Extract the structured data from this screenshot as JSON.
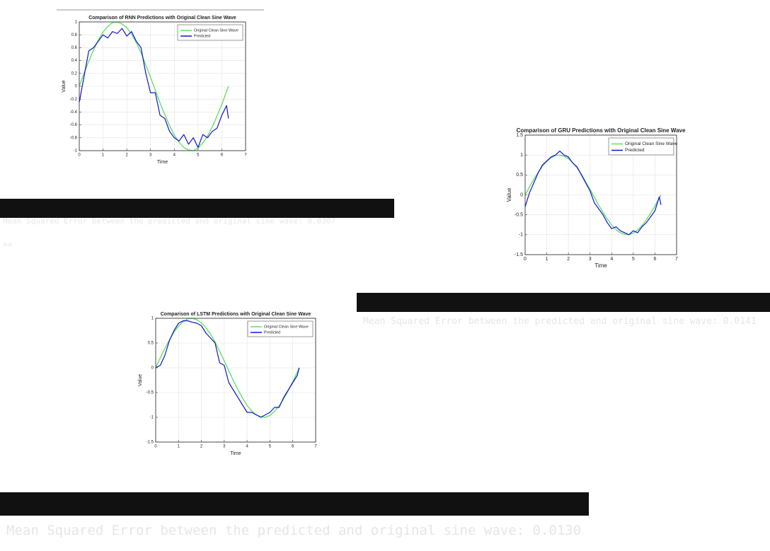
{
  "chart_data": [
    {
      "type": "line",
      "title": "Comparison of RNN Predictions with Original Clean Sine Wave",
      "xlabel": "Time",
      "ylabel": "Value",
      "x": [
        0,
        0.2,
        0.4,
        0.6,
        0.8,
        1,
        1.2,
        1.4,
        1.6,
        1.8,
        2,
        2.2,
        2.4,
        2.6,
        2.8,
        3,
        3.2,
        3.4,
        3.6,
        3.8,
        4,
        4.2,
        4.4,
        4.6,
        4.8,
        5,
        5.2,
        5.4,
        5.6,
        5.8,
        6,
        6.2,
        6.28
      ],
      "series": [
        {
          "name": "Original Clean Sine Wave",
          "color": "#66e066",
          "values": [
            0,
            0.2,
            0.39,
            0.56,
            0.72,
            0.84,
            0.93,
            0.99,
            1,
            0.97,
            0.91,
            0.81,
            0.68,
            0.52,
            0.33,
            0.14,
            -0.06,
            -0.26,
            -0.44,
            -0.61,
            -0.76,
            -0.87,
            -0.95,
            -0.99,
            -1,
            -0.96,
            -0.88,
            -0.77,
            -0.63,
            -0.46,
            -0.28,
            -0.08,
            0
          ]
        },
        {
          "name": "Predicted",
          "color": "#1414d0",
          "values": [
            -0.25,
            0.15,
            0.55,
            0.6,
            0.7,
            0.8,
            0.75,
            0.85,
            0.82,
            0.9,
            0.78,
            0.85,
            0.7,
            0.6,
            0.2,
            -0.1,
            -0.1,
            -0.45,
            -0.5,
            -0.7,
            -0.8,
            -0.85,
            -0.75,
            -0.9,
            -0.8,
            -0.95,
            -0.75,
            -0.8,
            -0.7,
            -0.65,
            -0.45,
            -0.3,
            -0.5
          ]
        }
      ],
      "xlim": [
        0,
        7
      ],
      "xticks": [
        0,
        1,
        2,
        3,
        4,
        5,
        6,
        7
      ],
      "ylim": [
        -1,
        1
      ],
      "yticks": [
        -1,
        -0.8,
        -0.6,
        -0.4,
        -0.2,
        0,
        0.2,
        0.4,
        0.6,
        0.8,
        1
      ],
      "grid": true,
      "legend": "upper right"
    },
    {
      "type": "line",
      "title": "Comparison of GRU Predictions with Original Clean Sine Wave",
      "xlabel": "Time",
      "ylabel": "Value",
      "x": [
        0,
        0.2,
        0.4,
        0.6,
        0.8,
        1,
        1.2,
        1.4,
        1.6,
        1.8,
        2,
        2.2,
        2.4,
        2.6,
        2.8,
        3,
        3.2,
        3.4,
        3.6,
        3.8,
        4,
        4.2,
        4.4,
        4.6,
        4.8,
        5,
        5.2,
        5.4,
        5.6,
        5.8,
        6,
        6.2,
        6.28
      ],
      "series": [
        {
          "name": "Original Clean Sine Wave",
          "color": "#66e066",
          "values": [
            0,
            0.2,
            0.39,
            0.56,
            0.72,
            0.84,
            0.93,
            0.99,
            1,
            0.97,
            0.91,
            0.81,
            0.68,
            0.52,
            0.33,
            0.14,
            -0.06,
            -0.26,
            -0.44,
            -0.61,
            -0.76,
            -0.87,
            -0.95,
            -0.99,
            -1,
            -0.96,
            -0.88,
            -0.77,
            -0.63,
            -0.46,
            -0.28,
            -0.08,
            0
          ]
        },
        {
          "name": "Predicted",
          "color": "#1414d0",
          "values": [
            -0.3,
            0.05,
            0.3,
            0.55,
            0.75,
            0.85,
            0.95,
            1,
            1.1,
            1,
            0.95,
            0.8,
            0.7,
            0.5,
            0.3,
            0.1,
            -0.2,
            -0.35,
            -0.5,
            -0.7,
            -0.85,
            -0.8,
            -0.9,
            -0.95,
            -1,
            -0.9,
            -0.95,
            -0.8,
            -0.7,
            -0.55,
            -0.4,
            -0.05,
            -0.25
          ]
        }
      ],
      "xlim": [
        0,
        7
      ],
      "xticks": [
        0,
        1,
        2,
        3,
        4,
        5,
        6,
        7
      ],
      "ylim": [
        -1.5,
        1.5
      ],
      "yticks": [
        -1.5,
        -1,
        -0.5,
        0,
        0.5,
        1,
        1.5
      ],
      "grid": true,
      "legend": "upper right"
    },
    {
      "type": "line",
      "title": "Comparison of LSTM Predictions with Original Clean Sine Wave",
      "xlabel": "Time",
      "ylabel": "Value",
      "x": [
        0,
        0.2,
        0.4,
        0.6,
        0.8,
        1,
        1.2,
        1.4,
        1.6,
        1.8,
        2,
        2.2,
        2.4,
        2.6,
        2.8,
        3,
        3.2,
        3.4,
        3.6,
        3.8,
        4,
        4.2,
        4.4,
        4.6,
        4.8,
        5,
        5.2,
        5.4,
        5.6,
        5.8,
        6,
        6.2,
        6.28
      ],
      "series": [
        {
          "name": "Original Clean Sine Wave",
          "color": "#66e066",
          "values": [
            0,
            0.2,
            0.39,
            0.56,
            0.72,
            0.84,
            0.93,
            0.99,
            1,
            0.97,
            0.91,
            0.81,
            0.68,
            0.52,
            0.33,
            0.14,
            -0.06,
            -0.26,
            -0.44,
            -0.61,
            -0.76,
            -0.87,
            -0.95,
            -0.99,
            -1,
            -0.96,
            -0.88,
            -0.77,
            -0.63,
            -0.46,
            -0.28,
            -0.08,
            0
          ]
        },
        {
          "name": "Predicted",
          "color": "#1414d0",
          "values": [
            0,
            0.05,
            0.25,
            0.55,
            0.75,
            0.9,
            0.95,
            0.95,
            0.92,
            0.9,
            0.85,
            0.7,
            0.6,
            0.5,
            0.1,
            0.05,
            -0.3,
            -0.45,
            -0.6,
            -0.75,
            -0.9,
            -0.9,
            -0.95,
            -1,
            -0.95,
            -0.9,
            -0.8,
            -0.8,
            -0.6,
            -0.45,
            -0.3,
            -0.15,
            0
          ]
        }
      ],
      "xlim": [
        0,
        7
      ],
      "xticks": [
        0,
        1,
        2,
        3,
        4,
        5,
        6,
        7
      ],
      "ylim": [
        -1.5,
        1
      ],
      "yticks": [
        -1.5,
        -1,
        -0.5,
        0,
        0.5,
        1
      ],
      "grid": true,
      "legend": "upper right"
    }
  ],
  "terminals": [
    {
      "lines": [
        "Mean Squared Error between the predicted and original sine wave: 0.0307",
        ">>"
      ]
    },
    {
      "lines": [
        "Mean Squared Error between the predicted and original sine wave: 0.0141"
      ]
    },
    {
      "lines": [
        "Mean Squared Error between the predicted and original sine wave: 0.0130"
      ]
    }
  ]
}
